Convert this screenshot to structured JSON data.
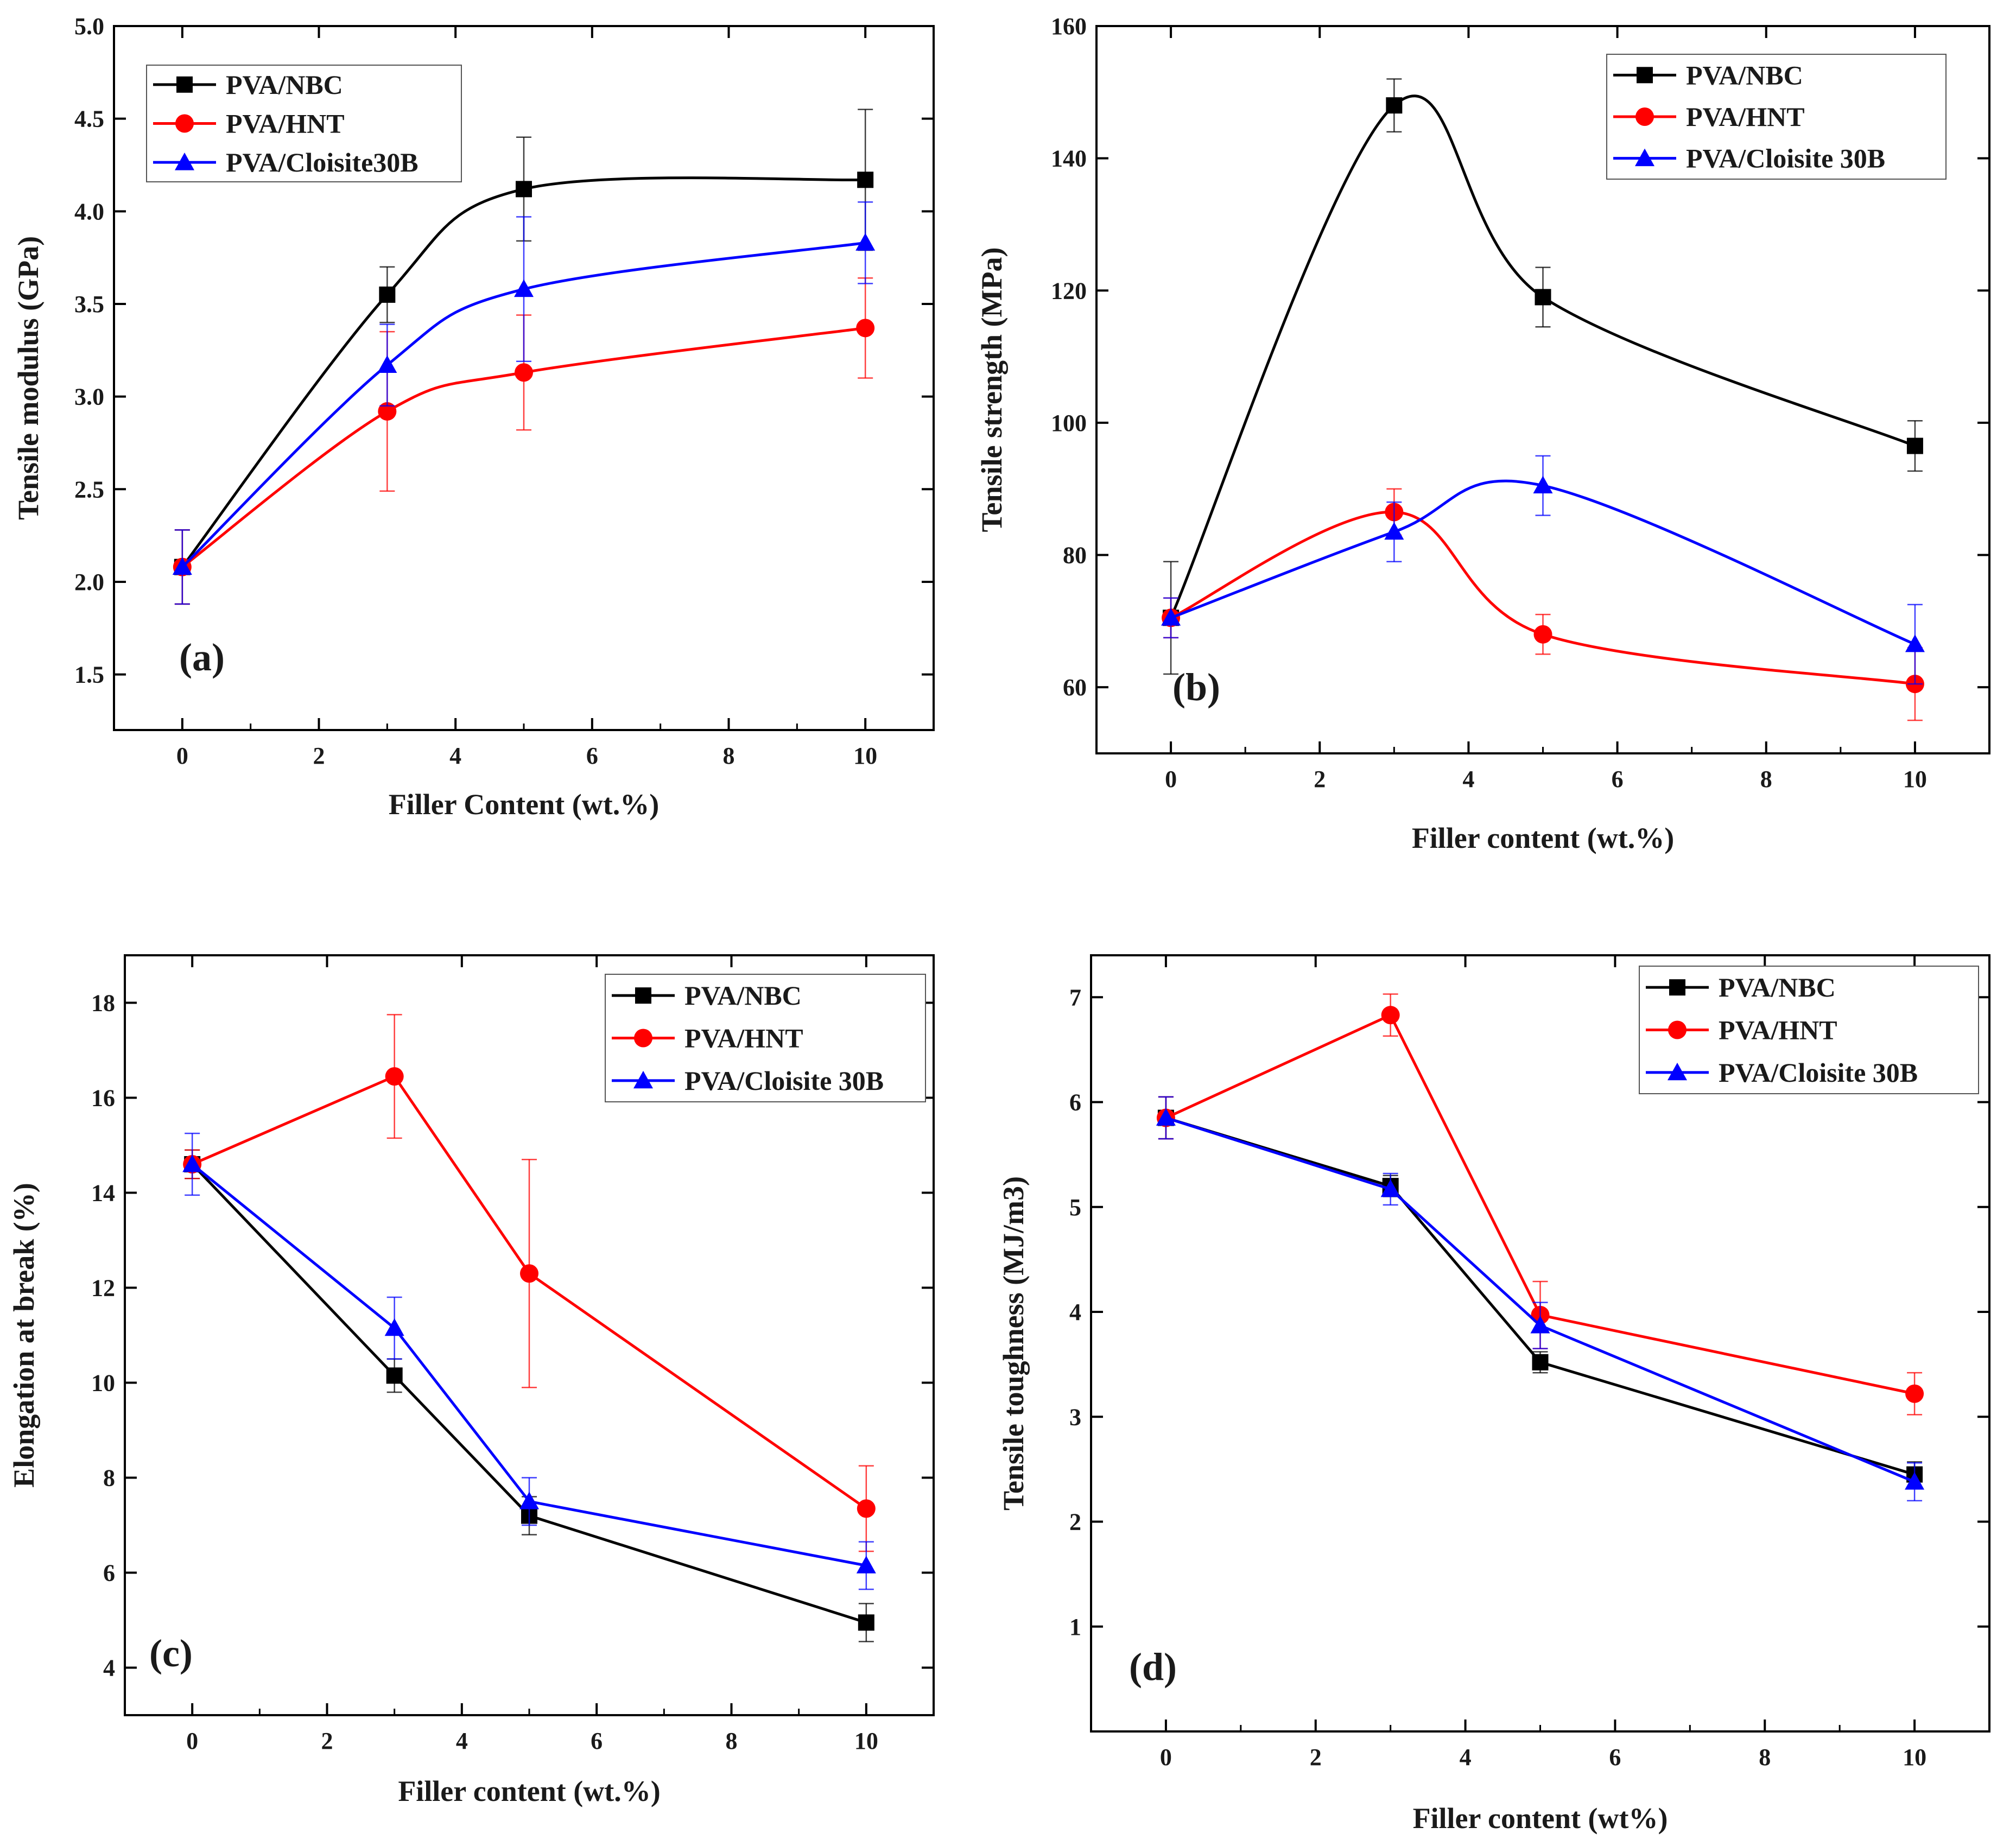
{
  "colors": {
    "nbc": "#000000",
    "hnt": "#ff0000",
    "cloisite": "#0000ff"
  },
  "chart_data": [
    {
      "type": "line",
      "panel_label": "(a)",
      "xlabel": "Filler Content (wt.%)",
      "ylabel": "Tensile modulus (GPa)",
      "xlim": [
        -1,
        11
      ],
      "ylim": [
        1.2,
        5.0
      ],
      "xticks": [
        "0",
        "2",
        "4",
        "6",
        "8",
        "10"
      ],
      "yticks": [
        "1.5",
        "2.0",
        "2.5",
        "3.0",
        "3.5",
        "4.0",
        "4.5",
        "5.0"
      ],
      "legend_position": "top-left",
      "x": [
        0,
        3,
        5,
        10
      ],
      "series": [
        {
          "name": "PVA/NBC",
          "color_key": "nbc",
          "marker": "square",
          "values": [
            2.08,
            3.55,
            4.12,
            4.17
          ],
          "errors": [
            0.2,
            0.15,
            0.28,
            0.38
          ]
        },
        {
          "name": "PVA/HNT",
          "color_key": "hnt",
          "marker": "circle",
          "values": [
            2.08,
            2.92,
            3.13,
            3.37
          ],
          "errors": [
            0.2,
            0.43,
            0.31,
            0.27
          ]
        },
        {
          "name": "PVA/Cloisite30B",
          "color_key": "cloisite",
          "marker": "triangle",
          "values": [
            2.08,
            3.17,
            3.58,
            3.83
          ],
          "errors": [
            0.2,
            0.22,
            0.39,
            0.22
          ]
        }
      ]
    },
    {
      "type": "line",
      "panel_label": "(b)",
      "xlabel": "Filler content (wt.%)",
      "ylabel": "Tensile strength (MPa)",
      "xlim": [
        -1,
        11
      ],
      "ylim": [
        50,
        160
      ],
      "xticks": [
        "0",
        "2",
        "4",
        "6",
        "8",
        "10"
      ],
      "yticks": [
        "60",
        "80",
        "100",
        "120",
        "140",
        "160"
      ],
      "legend_position": "top-right",
      "x": [
        0,
        3,
        5,
        10
      ],
      "series": [
        {
          "name": "PVA/NBC",
          "color_key": "nbc",
          "marker": "square",
          "values": [
            70.5,
            148,
            119,
            96.5
          ],
          "errors": [
            8.5,
            4,
            4.5,
            3.8
          ]
        },
        {
          "name": "PVA/HNT",
          "color_key": "hnt",
          "marker": "circle",
          "values": [
            70.5,
            86.5,
            68,
            60.5
          ],
          "errors": [
            3,
            3.5,
            3,
            5.5
          ]
        },
        {
          "name": "PVA/Cloisite 30B",
          "color_key": "cloisite",
          "marker": "triangle",
          "values": [
            70.5,
            83.5,
            90.5,
            66.5
          ],
          "errors": [
            3,
            4.5,
            4.5,
            6
          ]
        }
      ]
    },
    {
      "type": "line",
      "panel_label": "(c)",
      "xlabel": "Filler content (wt.%)",
      "ylabel": "Elongation at break (%)",
      "xlim": [
        -1,
        11
      ],
      "ylim": [
        3,
        19
      ],
      "xticks": [
        "0",
        "2",
        "4",
        "6",
        "8",
        "10"
      ],
      "yticks": [
        "4",
        "6",
        "8",
        "10",
        "12",
        "14",
        "16",
        "18"
      ],
      "legend_position": "top-right",
      "x": [
        0,
        3,
        5,
        10
      ],
      "series": [
        {
          "name": "PVA/NBC",
          "color_key": "nbc",
          "marker": "square",
          "values": [
            14.6,
            10.15,
            7.2,
            4.95
          ],
          "errors": [
            0.3,
            0.35,
            0.4,
            0.4
          ]
        },
        {
          "name": "PVA/HNT",
          "color_key": "hnt",
          "marker": "circle",
          "values": [
            14.6,
            16.45,
            12.3,
            7.35
          ],
          "errors": [
            0.3,
            1.3,
            2.4,
            0.9
          ]
        },
        {
          "name": "PVA/Cloisite 30B",
          "color_key": "cloisite",
          "marker": "triangle",
          "values": [
            14.6,
            11.15,
            7.5,
            6.15
          ],
          "errors": [
            0.65,
            0.65,
            0.5,
            0.5
          ]
        }
      ]
    },
    {
      "type": "line",
      "panel_label": "(d)",
      "xlabel": "Filler content (wt%)",
      "ylabel": "Tensile toughness (MJ/m3)",
      "xlim": [
        -1,
        11
      ],
      "ylim": [
        0,
        7.4
      ],
      "xticks": [
        "0",
        "2",
        "4",
        "6",
        "8",
        "10"
      ],
      "yticks": [
        "1",
        "2",
        "3",
        "4",
        "5",
        "6",
        "7"
      ],
      "legend_position": "top-right",
      "x": [
        0,
        3,
        5,
        10
      ],
      "series": [
        {
          "name": "PVA/NBC",
          "color_key": "nbc",
          "marker": "square",
          "values": [
            5.85,
            5.2,
            3.52,
            2.45
          ],
          "errors": [
            0.2,
            0.1,
            0.1,
            0.12
          ]
        },
        {
          "name": "PVA/HNT",
          "color_key": "hnt",
          "marker": "circle",
          "values": [
            5.85,
            6.83,
            3.97,
            3.22
          ],
          "errors": [
            0.2,
            0.2,
            0.32,
            0.2
          ]
        },
        {
          "name": "PVA/Cloisite 30B",
          "color_key": "cloisite",
          "marker": "triangle",
          "values": [
            5.85,
            5.17,
            3.87,
            2.38
          ],
          "errors": [
            0.2,
            0.15,
            0.22,
            0.18
          ]
        }
      ]
    }
  ]
}
